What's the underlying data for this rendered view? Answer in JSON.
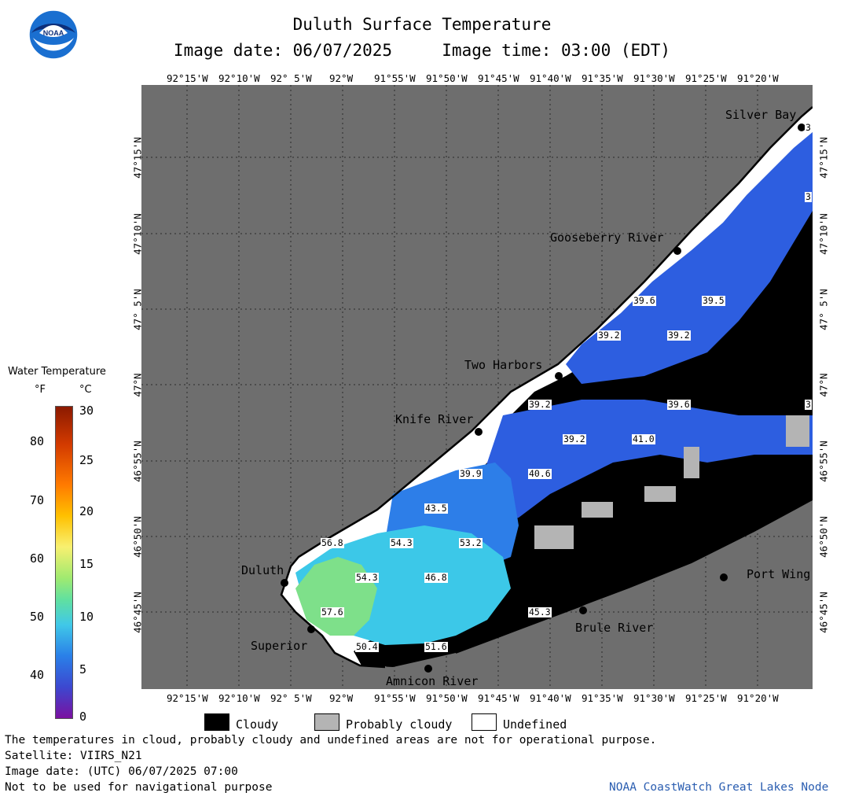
{
  "header": {
    "title": "Duluth Surface Temperature",
    "subtitle": "Image date: 06/07/2025     Image time: 03:00 (EDT)"
  },
  "logo": {
    "text": "NOAA"
  },
  "lon_labels": [
    "92°15'W",
    "92°10'W",
    "92° 5'W",
    "92°W",
    "91°55'W",
    "91°50'W",
    "91°45'W",
    "91°40'W",
    "91°35'W",
    "91°30'W",
    "91°25'W",
    "91°20'W"
  ],
  "lat_labels": [
    "47°15'N",
    "47°10'N",
    "47° 5'N",
    "47°N",
    "46°55'N",
    "46°50'N",
    "46°45'N"
  ],
  "places": [
    {
      "name": "Silver Bay"
    },
    {
      "name": "Gooseberry River"
    },
    {
      "name": "Two Harbors"
    },
    {
      "name": "Knife River"
    },
    {
      "name": "Duluth"
    },
    {
      "name": "Superior"
    },
    {
      "name": "Amnicon River"
    },
    {
      "name": "Brule River"
    },
    {
      "name": "Port Wing"
    }
  ],
  "temp_labels": [
    "39.6",
    "39.5",
    "39.2",
    "39.2",
    "39.2",
    "39.6",
    "39.2",
    "41.0",
    "39.9",
    "40.6",
    "43.5",
    "56.8",
    "54.3",
    "53.2",
    "54.3",
    "46.8",
    "57.6",
    "50.4",
    "51.6",
    "45.3",
    "3",
    "3",
    "3"
  ],
  "scale": {
    "title": "Water Temperature",
    "f_unit": "°F",
    "c_unit": "°C",
    "f_ticks": [
      "80",
      "70",
      "60",
      "50",
      "40"
    ],
    "c_ticks": [
      "30",
      "25",
      "20",
      "15",
      "10",
      "5",
      "0"
    ]
  },
  "legend": {
    "cloudy": "Cloudy",
    "probably_cloudy": "Probably cloudy",
    "undefined": "Undefined"
  },
  "footer": {
    "line1": "The temperatures in cloud, probably cloudy and undefined areas are not for operational purpose.",
    "line2": "Satellite: VIIRS_N21",
    "line3": "Image date: (UTC) 06/07/2025  07:00",
    "line4": "Not to be used for navigational purpose",
    "credit": "NOAA CoastWatch Great Lakes Node"
  },
  "colors": {
    "land": "#6e6e6e",
    "cloudy": "#000000",
    "probably_cloudy": "#b4b4b4",
    "undefined": "#ffffff",
    "cold_water": "#2d5ee0",
    "credit": "#2a5db0"
  }
}
